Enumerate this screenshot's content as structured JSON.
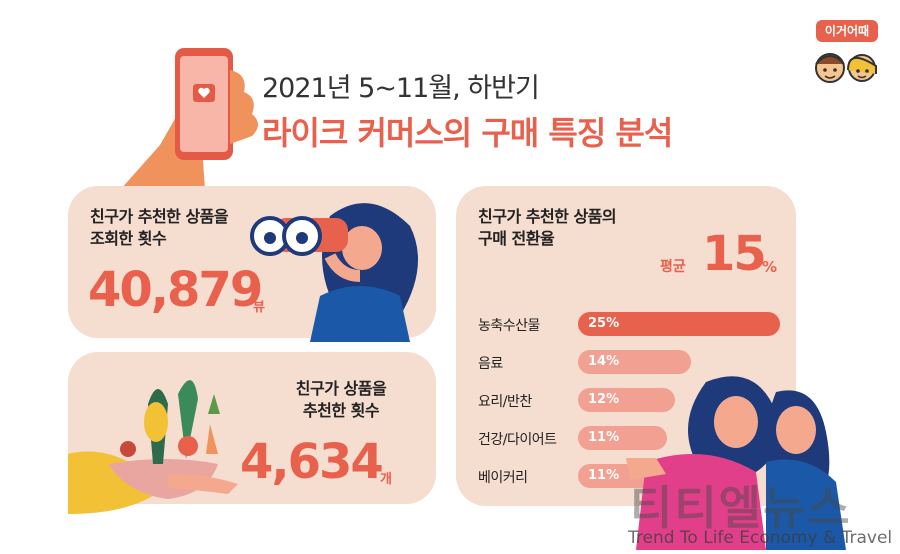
{
  "header": {
    "subtitle": "2021년 5~11월, 하반기",
    "title": "라이크 커머스의 구매 특징 분석"
  },
  "logo": {
    "badge_text": "이거어때"
  },
  "card_views": {
    "label_line1": "친구가 추천한 상품을",
    "label_line2": "조회한 횟수",
    "value": "40,879",
    "unit": "뷰"
  },
  "card_recommend": {
    "label_line1": "친구가 상품을",
    "label_line2": "추천한 횟수",
    "value": "4,634",
    "unit": "개"
  },
  "card_conversion": {
    "label_line1": "친구가 추천한 상품의",
    "label_line2": "구매 전환율",
    "avg_label": "평균",
    "avg_value": "15",
    "avg_unit": "%",
    "rows": [
      {
        "label": "농축수산물",
        "value_text": "25%",
        "value": 25
      },
      {
        "label": "음료",
        "value_text": "14%",
        "value": 14
      },
      {
        "label": "요리/반찬",
        "value_text": "12%",
        "value": 12
      },
      {
        "label": "건강/다이어트",
        "value_text": "11%",
        "value": 11
      },
      {
        "label": "베이커리",
        "value_text": "11%",
        "value": 11
      }
    ]
  },
  "watermark": {
    "name": "티티엘뉴스",
    "tagline": "Trend To Life Economy & Travel"
  },
  "colors": {
    "accent": "#e8614d",
    "card_bg": "#f5ddd0",
    "bar_main": "#e8614d",
    "bar_light": "#f2a091"
  }
}
